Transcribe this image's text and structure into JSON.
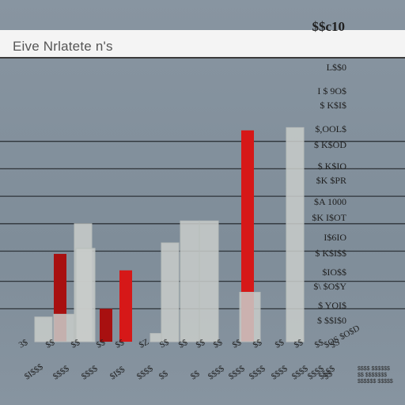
{
  "chart_data": {
    "type": "bar",
    "title": "Eive Nrlatete n's",
    "top_label": "$$c10",
    "y_tick_labels": [
      "L$$0",
      "I $ 9O$",
      "$ K$I$",
      "$,OOL$",
      "$ K$OD",
      "$ K$IO",
      "$K $PR",
      "$A 1000",
      "$K I$OT",
      "I$6IO",
      "$ K$I$$",
      "$IO$$",
      "$\\ $O$Y",
      "$ YOI$",
      "$ $$I$0"
    ],
    "x_tick_labels": [
      "$S",
      "$b",
      "$Y",
      "$S",
      "$S",
      "$S",
      "$S",
      "$S",
      "$S",
      "$S",
      "$S",
      "$S",
      "$S",
      "$S",
      "$S",
      "$S",
      "$S",
      "$S",
      "$S",
      "$S",
      "$S",
      "$S",
      "$S",
      "$S",
      "$S",
      "$S",
      "$S",
      "$S",
      "$S",
      "$S"
    ],
    "x_tick_labels_row1": [
      "3$",
      "$$",
      "$$",
      "$$",
      "$$",
      "$Z",
      "S$",
      "$$",
      "$$",
      "$$",
      "$$",
      "$$",
      "$$",
      "$$",
      "$$",
      "$S",
      "$OS $O$D"
    ],
    "x_tick_labels_row2": [
      "$I$$$",
      "$$$$",
      "$$$$",
      "$I$$",
      "$$$$",
      "$$",
      "$$",
      "$$$$",
      "$$$$",
      "$$$$",
      "$$$$",
      "$$$$",
      "$$$$",
      "$$$$",
      "$$"
    ],
    "ylim": [
      0,
      100
    ],
    "gridlines": [
      73,
      63,
      53,
      43,
      33,
      22,
      12
    ],
    "grid": true,
    "legend_text": [
      "$$$$ $$$$$$",
      "$$ $$$$$$$",
      "$$$$$$ $$$$$"
    ],
    "colors": {
      "grey": "#c9cdca",
      "red": "#d61818",
      "dark_red": "#a81010",
      "title_bg": "#f4f4f4",
      "grid": "#2e3439"
    },
    "bars": [
      {
        "name": "b1",
        "value": 9,
        "color": "grey"
      },
      {
        "name": "b2",
        "value": 32,
        "color": "dark_red"
      },
      {
        "name": "b3",
        "value": 10,
        "color": "grey"
      },
      {
        "name": "b4",
        "value": 43,
        "color": "grey"
      },
      {
        "name": "b5",
        "value": 34,
        "color": "grey"
      },
      {
        "name": "b6",
        "value": 12,
        "color": "dark_red"
      },
      {
        "name": "b7",
        "value": 26,
        "color": "red"
      },
      {
        "name": "b8",
        "value": 3,
        "color": "grey"
      },
      {
        "name": "b9",
        "value": 36,
        "color": "grey"
      },
      {
        "name": "b10",
        "value": 44,
        "color": "grey"
      },
      {
        "name": "b11",
        "value": 44,
        "color": "grey"
      },
      {
        "name": "b12",
        "value": 77,
        "color": "red"
      },
      {
        "name": "b13",
        "value": 18,
        "color": "grey"
      },
      {
        "name": "b14",
        "value": 78,
        "color": "grey"
      }
    ]
  }
}
